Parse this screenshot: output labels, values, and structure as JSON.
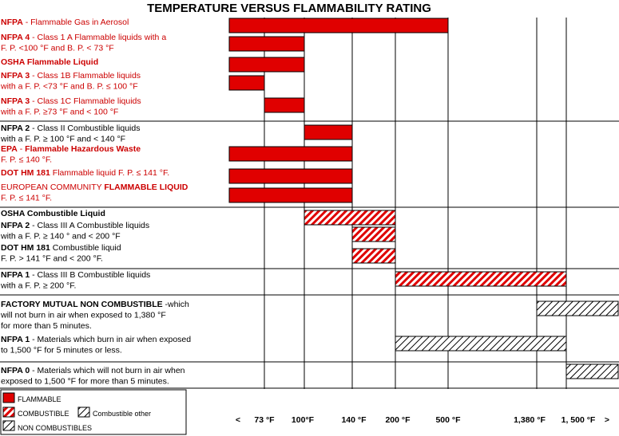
{
  "chart_data": {
    "type": "bar",
    "title": "TEMPERATURE VERSUS FLAMMABILITY RATING",
    "x_tick_labels": [
      "<",
      "73 °F",
      "100°F",
      "140 °F",
      "200 °F",
      "500 °F",
      "1,380 °F",
      "1, 500 °F",
      ">"
    ],
    "grid": true,
    "series_styles": {
      "flammable": {
        "fill": "#e00000",
        "stroke": "#000000"
      },
      "combustible": {
        "fill": "#e00000",
        "pattern": "red-hatch",
        "stroke": "#000000"
      },
      "non_combustible": {
        "fill": "#ffffff",
        "pattern": "black-hatch",
        "stroke": "#000000"
      },
      "combustible_other": {
        "fill": "#ffffff",
        "pattern": "black-hatch",
        "stroke": "#000000"
      }
    },
    "legend": [
      {
        "style": "flammable",
        "label": "FLAMMABLE"
      },
      {
        "style": "combustible",
        "label": "COMBUSTIBLE"
      },
      {
        "style": "combustible_other",
        "label": "Combustible other"
      },
      {
        "style": "non_combustible",
        "label": "NON COMBUSTIBLES"
      }
    ],
    "legend_position": "bottom-left",
    "groups": [
      {
        "labels": [
          {
            "row": 0,
            "line": 1,
            "segments": [
              {
                "text": "NFPA",
                "bold": true
              },
              {
                "text": " - Flammable Gas in Aerosol"
              }
            ],
            "color": "#cc0000"
          },
          {
            "row": 1,
            "line": 1,
            "segments": [
              {
                "text": "NFPA 4",
                "bold": true
              },
              {
                "text": " - Class 1 A Flammable liquids with a"
              }
            ],
            "color": "#cc0000"
          },
          {
            "row": 1,
            "line": 2,
            "segments": [
              {
                "text": "F. P. <100 °F  and B. P. < 73 °F"
              }
            ],
            "color": "#cc0000"
          },
          {
            "row": 2,
            "line": 1,
            "segments": [
              {
                "text": "OSHA Flammable  Liquid",
                "bold": true
              }
            ],
            "color": "#cc0000"
          },
          {
            "row": 3,
            "line": 1,
            "segments": [
              {
                "text": "NFPA 3",
                "bold": true
              },
              {
                "text": " - Class 1B Flammable liquids"
              }
            ],
            "color": "#cc0000"
          },
          {
            "row": 3,
            "line": 2,
            "segments": [
              {
                "text": "with a F. P. <73 °F  and B. P. ≤ 100 °F"
              }
            ],
            "color": "#cc0000"
          },
          {
            "row": 4,
            "line": 1,
            "segments": [
              {
                "text": "NFPA  3",
                "bold": true
              },
              {
                "text": " - Class 1C Flammable liquids"
              }
            ],
            "color": "#cc0000"
          },
          {
            "row": 4,
            "line": 2,
            "segments": [
              {
                "text": " with a F. P. ≥73 °F  and < 100 °F"
              }
            ],
            "color": "#cc0000"
          }
        ],
        "bars": [
          {
            "row": 0,
            "from": "<",
            "to": "500 °F",
            "style": "flammable"
          },
          {
            "row": 1,
            "from": "<",
            "to": "100°F",
            "style": "flammable"
          },
          {
            "row": 2,
            "from": "<",
            "to": "100°F",
            "style": "flammable"
          },
          {
            "row": 3,
            "from": "<",
            "to": "73 °F",
            "style": "flammable"
          },
          {
            "row": 4,
            "from": "73 °F",
            "to": "100°F",
            "style": "flammable"
          }
        ]
      },
      {
        "labels": [
          {
            "row": 0,
            "line": 1,
            "segments": [
              {
                "text": "NFPA  2",
                "bold": true
              },
              {
                "text": " - Class II Combustible liquids"
              }
            ],
            "color": "#000000"
          },
          {
            "row": 0,
            "line": 2,
            "segments": [
              {
                "text": "with a F. P. ≥ 100 °F  and < 140 °F"
              }
            ],
            "color": "#000000"
          },
          {
            "row": 1,
            "line": 1,
            "segments": [
              {
                "text": "EPA",
                "bold": true
              },
              {
                "text": " - "
              },
              {
                "text": "Flammable Hazardous Waste",
                "bold": true
              }
            ],
            "color": "#cc0000"
          },
          {
            "row": 1,
            "line": 2,
            "segments": [
              {
                "text": "F. P. ≤ 140 °F."
              }
            ],
            "color": "#cc0000"
          },
          {
            "row": 2,
            "line": 1,
            "segments": [
              {
                "text": "DOT HM 181",
                "bold": true
              },
              {
                "text": " Flammable liquid F. P. ≤ 141 °F."
              }
            ],
            "color": "#cc0000"
          },
          {
            "row": 3,
            "line": 1,
            "segments": [
              {
                "text": "EUROPEAN COMMUNITY "
              },
              {
                "text": "FLAMMABLE LIQUID",
                "bold": true
              }
            ],
            "color": "#cc0000"
          },
          {
            "row": 3,
            "line": 2,
            "segments": [
              {
                "text": "F. P. ≤ 141 °F."
              }
            ],
            "color": "#cc0000"
          }
        ],
        "bars": [
          {
            "row": 0,
            "from": "100°F",
            "to": "140 °F",
            "style": "flammable"
          },
          {
            "row": 1,
            "from": "<",
            "to": "140 °F",
            "style": "flammable"
          },
          {
            "row": 2,
            "from": "<",
            "to": "140 °F",
            "style": "flammable"
          },
          {
            "row": 3,
            "from": "<",
            "to": "140 °F",
            "style": "flammable"
          }
        ]
      },
      {
        "labels": [
          {
            "row": 0,
            "line": 1,
            "segments": [
              {
                "text": "OSHA Combustible  Liquid",
                "bold": true
              }
            ],
            "color": "#000000"
          },
          {
            "row": 1,
            "line": 1,
            "segments": [
              {
                "text": "NFPA 2",
                "bold": true
              },
              {
                "text": " - Class III A Combustible liquids"
              }
            ],
            "color": "#000000"
          },
          {
            "row": 1,
            "line": 2,
            "segments": [
              {
                "text": "with a F. P.  ≥ 140 ° and < 200 °F"
              }
            ],
            "color": "#000000"
          },
          {
            "row": 2,
            "line": 1,
            "segments": [
              {
                "text": "DOT HM 181",
                "bold": true
              },
              {
                "text": " Combustible liquid"
              }
            ],
            "color": "#000000"
          },
          {
            "row": 2,
            "line": 2,
            "segments": [
              {
                "text": "F. P. > 141 °F and < 200 °F."
              }
            ],
            "color": "#000000"
          }
        ],
        "bars": [
          {
            "row": 0,
            "from": "100°F",
            "to": "200 °F",
            "style": "combustible"
          },
          {
            "row": 1,
            "from": "140 °F",
            "to": "200 °F",
            "style": "combustible"
          },
          {
            "row": 2,
            "from": "140 °F",
            "to": "200 °F",
            "style": "combustible"
          }
        ]
      },
      {
        "labels": [
          {
            "row": 0,
            "line": 1,
            "segments": [
              {
                "text": "NFPA 1",
                "bold": true
              },
              {
                "text": " - Class III B Combustible liquids"
              }
            ],
            "color": "#000000"
          },
          {
            "row": 0,
            "line": 2,
            "segments": [
              {
                "text": " with a F. P.  ≥  200 °F."
              }
            ],
            "color": "#000000"
          }
        ],
        "bars": [
          {
            "row": 0,
            "from": "200 °F",
            "to": "1, 500 °F",
            "style": "combustible"
          }
        ]
      },
      {
        "labels": [
          {
            "row": 0,
            "line": 1,
            "segments": [
              {
                "text": "FACTORY MUTUAL NON COMBUSTIBLE",
                "bold": true
              },
              {
                "text": " -which"
              }
            ],
            "color": "#000000"
          },
          {
            "row": 0,
            "line": 2,
            "segments": [
              {
                "text": "will not burn in air when exposed to 1,380 °F"
              }
            ],
            "color": "#000000"
          },
          {
            "row": 0,
            "line": 3,
            "segments": [
              {
                "text": " for more than 5 minutes."
              }
            ],
            "color": "#000000"
          },
          {
            "row": 1,
            "line": 1,
            "segments": [
              {
                "text": "NFPA 1",
                "bold": true
              },
              {
                "text": " - Materials which burn in air when exposed"
              }
            ],
            "color": "#000000"
          },
          {
            "row": 1,
            "line": 2,
            "segments": [
              {
                "text": "to 1,500 °F for 5 minutes or less."
              }
            ],
            "color": "#000000"
          }
        ],
        "bars": [
          {
            "row": 0,
            "from": "1,380 °F",
            "to": ">",
            "style": "non_combustible"
          },
          {
            "row": 1,
            "from": "200 °F",
            "to": "1, 500 °F",
            "style": "combustible_other"
          }
        ]
      },
      {
        "labels": [
          {
            "row": 0,
            "line": 1,
            "segments": [
              {
                "text": "NFPA 0",
                "bold": true
              },
              {
                "text": " - Materials which will not burn in air when"
              }
            ],
            "color": "#000000"
          },
          {
            "row": 0,
            "line": 2,
            "segments": [
              {
                "text": "exposed to 1,500 °F for more than 5 minutes."
              }
            ],
            "color": "#000000"
          }
        ],
        "bars": [
          {
            "row": 0,
            "from": "1, 500 °F",
            "to": ">",
            "style": "non_combustible"
          }
        ]
      }
    ]
  }
}
